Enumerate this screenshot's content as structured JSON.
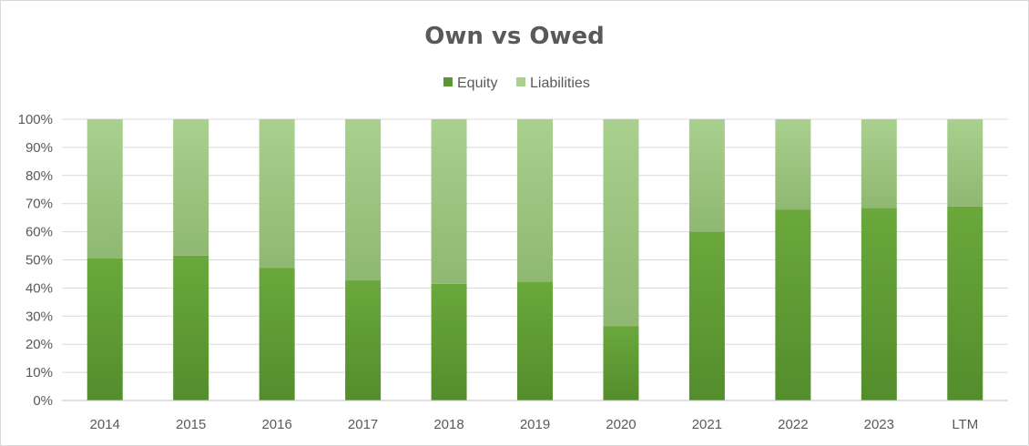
{
  "chart_data": {
    "type": "bar",
    "stacked": true,
    "normalized": true,
    "title": "Own vs Owed",
    "categories": [
      "2014",
      "2015",
      "2016",
      "2017",
      "2018",
      "2019",
      "2020",
      "2021",
      "2022",
      "2023",
      "LTM"
    ],
    "series": [
      {
        "name": "Equity",
        "color": "#5b9632",
        "values": [
          50.5,
          51.5,
          47.2,
          42.7,
          41.5,
          42.3,
          26.5,
          60.0,
          67.8,
          68.5,
          69.0
        ]
      },
      {
        "name": "Liabilities",
        "color": "#a9d08e",
        "values": [
          49.5,
          48.5,
          52.8,
          57.3,
          58.5,
          57.7,
          73.5,
          40.0,
          32.2,
          31.5,
          31.0
        ]
      }
    ],
    "ylim": [
      0,
      100
    ],
    "yticks": [
      "0%",
      "10%",
      "20%",
      "30%",
      "40%",
      "50%",
      "60%",
      "70%",
      "80%",
      "90%",
      "100%"
    ],
    "grid": true,
    "legend_position": "top-center"
  }
}
